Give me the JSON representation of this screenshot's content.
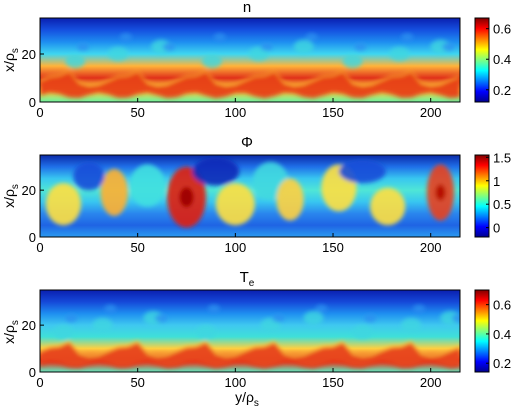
{
  "chart_data": [
    {
      "type": "heatmap",
      "title": "n",
      "xlabel": "",
      "ylabel_main": "x/ρ",
      "ylabel_sub": "s",
      "xlim": [
        0,
        215
      ],
      "ylim": [
        0,
        35
      ],
      "xticks": [
        "0",
        "50",
        "100",
        "150",
        "200"
      ],
      "yticks": [
        "0",
        "20"
      ],
      "colorbar": {
        "range": [
          0.12,
          0.67
        ],
        "ticks": [
          "0.6",
          "0.4",
          "0.2"
        ],
        "tick_values": [
          0.6,
          0.4,
          0.2
        ]
      },
      "field": "density: high band (~0.6) near x≈5–10, low (~0.15) above x≈25"
    },
    {
      "type": "heatmap",
      "title": "Φ",
      "xlabel": "",
      "ylabel_main": "x/ρ",
      "ylabel_sub": "s",
      "xlim": [
        0,
        215
      ],
      "ylim": [
        0,
        35
      ],
      "xticks": [
        "0",
        "50",
        "100",
        "150",
        "200"
      ],
      "yticks": [
        "0",
        "20"
      ],
      "colorbar": {
        "range": [
          -0.2,
          1.55
        ],
        "ticks": [
          "1.5",
          "1",
          "0.5",
          "0"
        ],
        "tick_values": [
          1.5,
          1,
          0.5,
          0
        ]
      },
      "field": "potential: cellular blobs, peaks ~1.4 near y≈75, x≈15"
    },
    {
      "type": "heatmap",
      "title_main": "T",
      "title_sub": "e",
      "xlabel_main": "y/ρ",
      "xlabel_sub": "s",
      "ylabel_main": "x/ρ",
      "ylabel_sub": "s",
      "xlim": [
        0,
        215
      ],
      "ylim": [
        0,
        35
      ],
      "xticks": [
        "0",
        "50",
        "100",
        "150",
        "200"
      ],
      "yticks": [
        "0",
        "20"
      ],
      "colorbar": {
        "range": [
          0.14,
          0.7
        ],
        "ticks": [
          "0.6",
          "0.4",
          "0.2"
        ],
        "tick_values": [
          0.6,
          0.4,
          0.2
        ]
      },
      "field": "electron temperature: sharp hot band near x≈5 with plumes"
    }
  ]
}
